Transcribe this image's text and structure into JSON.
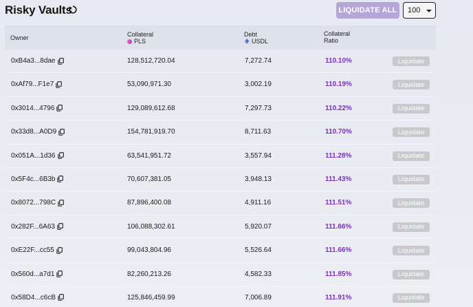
{
  "header": {
    "title": "Risky Vaults",
    "liquidate_all_label": "LIQUIDATE ALL",
    "page_size": "100"
  },
  "table": {
    "columns": {
      "owner": "Owner",
      "collateral": "Collateral",
      "collateral_token": "PLS",
      "debt": "Debt",
      "debt_token": "USDL",
      "ratio_line1": "Collateral",
      "ratio_line2": "Ratio"
    },
    "action_label": "Liquidate",
    "rows": [
      {
        "owner": "0xB4a3...8dae",
        "collateral": "128,512,720.04",
        "debt": "7,272.74",
        "ratio": "110.10%"
      },
      {
        "owner": "0xAf79...F1e7",
        "collateral": "53,090,971.30",
        "debt": "3,002.19",
        "ratio": "110.19%"
      },
      {
        "owner": "0x3014...4796",
        "collateral": "129,089,612.68",
        "debt": "7,297.73",
        "ratio": "110.22%"
      },
      {
        "owner": "0x33d8...A0D9",
        "collateral": "154,781,919.70",
        "debt": "8,711.63",
        "ratio": "110.70%"
      },
      {
        "owner": "0x051A...1d36",
        "collateral": "63,541,951.72",
        "debt": "3,557.94",
        "ratio": "111.28%"
      },
      {
        "owner": "0x5F4c...6B3b",
        "collateral": "70,607,381.05",
        "debt": "3,948.13",
        "ratio": "111.43%"
      },
      {
        "owner": "0x8072...798C",
        "collateral": "87,896,400.08",
        "debt": "4,911.16",
        "ratio": "111.51%"
      },
      {
        "owner": "0x282F...6A63",
        "collateral": "106,088,302.61",
        "debt": "5,920.07",
        "ratio": "111.66%"
      },
      {
        "owner": "0xE22F...cc55",
        "collateral": "99,043,804.96",
        "debt": "5,526.64",
        "ratio": "111.66%"
      },
      {
        "owner": "0x560d...a7d1",
        "collateral": "82,260,213.26",
        "debt": "4,582.33",
        "ratio": "111.85%"
      },
      {
        "owner": "0x58D4...c6cB",
        "collateral": "125,846,459.99",
        "debt": "7,006.89",
        "ratio": "111.91%"
      }
    ]
  },
  "colors": {
    "ratio": "#7b2fbe",
    "liquidate_all_bg": "#b5a6d8",
    "liquidate_bg": "#c8c9cc",
    "header_bg": "#dde1ea"
  }
}
